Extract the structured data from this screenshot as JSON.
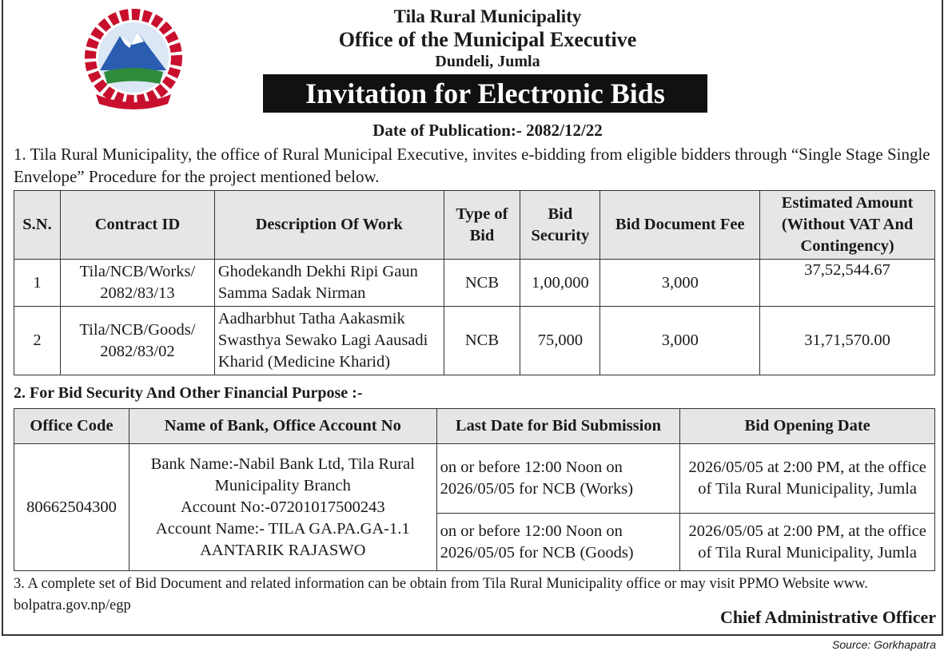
{
  "header": {
    "line1": "Tila Rural Municipality",
    "line2": "Office of the Municipal Executive",
    "line3": "Dundeli, Jumla",
    "banner": "Invitation for Electronic Bids",
    "publication_date": "Date of Publication:- 2082/12/22"
  },
  "intro": "1. Tila Rural Municipality, the office of Rural Municipal Executive, invites e-bidding from eligible bidders through “Single Stage Single Envelope” Procedure for the project mentioned below.",
  "table1": {
    "headers": [
      "S.N.",
      "Contract ID",
      "Description Of Work",
      "Type of Bid",
      "Bid Security",
      "Bid Document Fee",
      "Estimated Amount (Without VAT And Contingency)"
    ],
    "rows": [
      [
        "1",
        "Tila/NCB/Works/ 2082/83/13",
        "Ghodekandh Dekhi Ripi Gaun Samma Sadak Nirman",
        "NCB",
        "1,00,000",
        "3,000",
        "37,52,544.67"
      ],
      [
        "2",
        "Tila/NCB/Goods/ 2082/83/02",
        "Aadharbhut Tatha Aakasmik Swasthya Sewako Lagi Aausadi Kharid (Medicine Kharid)",
        "NCB",
        "75,000",
        "3,000",
        "31,71,570.00"
      ]
    ]
  },
  "section2": "2. For Bid Security And Other Financial Purpose :-",
  "table2": {
    "headers": [
      "Office Code",
      "Name of Bank, Office Account No",
      "Last Date for Bid Submission",
      "Bid Opening Date"
    ],
    "office_code": "80662504300",
    "bank_lines": [
      "Bank Name:-Nabil Bank Ltd, Tila Rural Municipality Branch",
      "Account No:-07201017500243",
      "Account Name:- TILA GA.PA.GA-1.1 AANTARIK RAJASWO"
    ],
    "rows": [
      {
        "submission": "on or before 12:00 Noon on 2026/05/05 for NCB (Works)",
        "opening": "2026/05/05 at 2:00 PM, at the office of Tila Rural Municipality, Jumla"
      },
      {
        "submission": "on or before 12:00 Noon on 2026/05/05 for NCB (Goods)",
        "opening": "2026/05/05 at 2:00 PM, at the office of Tila Rural Municipality, Jumla"
      }
    ]
  },
  "note3": "3. A complete set of Bid Document and related information can be obtain from Tila Rural Municipality office or may visit PPMO Website www.",
  "note3_url": "bolpatra.gov.np/egp",
  "signer": "Chief Administrative Officer",
  "source": "Source: Gorkhapatra",
  "logo_icon": "nepal-emblem-icon"
}
